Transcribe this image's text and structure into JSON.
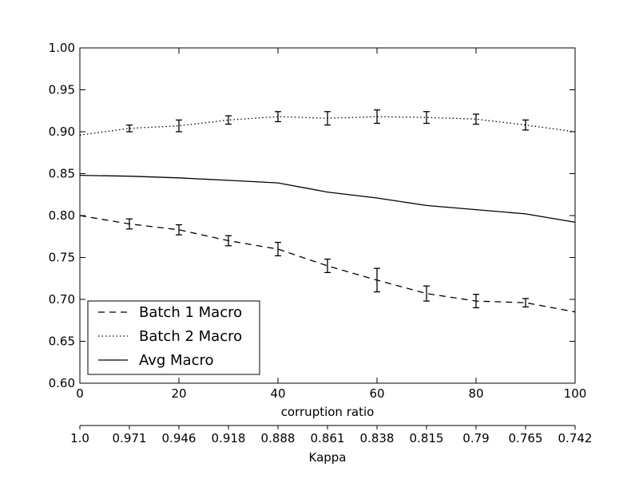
{
  "chart_data": {
    "type": "line",
    "xlabel": "corruption ratio",
    "x2label": "Kappa",
    "xlim": [
      0,
      100
    ],
    "ylim": [
      0.6,
      1.0
    ],
    "x_ticks": [
      0,
      20,
      40,
      60,
      80,
      100
    ],
    "x_tick_labels": [
      "0",
      "20",
      "40",
      "60",
      "80",
      "100"
    ],
    "y_ticks": [
      0.6,
      0.65,
      0.7,
      0.75,
      0.8,
      0.85,
      0.9,
      0.95,
      1.0
    ],
    "y_tick_labels": [
      "0.60",
      "0.65",
      "0.70",
      "0.75",
      "0.80",
      "0.85",
      "0.90",
      "0.95",
      "1.00"
    ],
    "x2_ticks": [
      0,
      10,
      20,
      30,
      40,
      50,
      60,
      70,
      80,
      90,
      100
    ],
    "x2_tick_labels": [
      "1.0",
      "0.971",
      "0.946",
      "0.918",
      "0.888",
      "0.861",
      "0.838",
      "0.815",
      "0.79",
      "0.765",
      "0.742"
    ],
    "grid": false,
    "legend_position": "bottom-left",
    "series": [
      {
        "name": "Batch 1 Macro",
        "style": "dashed",
        "color": "#000000",
        "x": [
          0,
          10,
          20,
          30,
          40,
          50,
          60,
          70,
          80,
          90,
          100
        ],
        "y": [
          0.8,
          0.79,
          0.783,
          0.77,
          0.76,
          0.74,
          0.723,
          0.707,
          0.698,
          0.696,
          0.685
        ],
        "error": [
          null,
          0.006,
          0.006,
          0.006,
          0.008,
          0.008,
          0.014,
          0.009,
          0.008,
          0.005,
          null
        ]
      },
      {
        "name": "Batch 2 Macro",
        "style": "dotted",
        "color": "#000000",
        "x": [
          0,
          10,
          20,
          30,
          40,
          50,
          60,
          70,
          80,
          90,
          100
        ],
        "y": [
          0.896,
          0.904,
          0.907,
          0.914,
          0.918,
          0.916,
          0.918,
          0.917,
          0.915,
          0.908,
          0.9
        ],
        "error": [
          null,
          0.004,
          0.007,
          0.005,
          0.006,
          0.008,
          0.008,
          0.007,
          0.006,
          0.006,
          null
        ]
      },
      {
        "name": "Avg Macro",
        "style": "solid",
        "color": "#000000",
        "x": [
          0,
          10,
          20,
          30,
          40,
          50,
          60,
          70,
          80,
          90,
          100
        ],
        "y": [
          0.848,
          0.847,
          0.845,
          0.842,
          0.839,
          0.828,
          0.821,
          0.812,
          0.807,
          0.802,
          0.792
        ],
        "error": []
      }
    ]
  }
}
